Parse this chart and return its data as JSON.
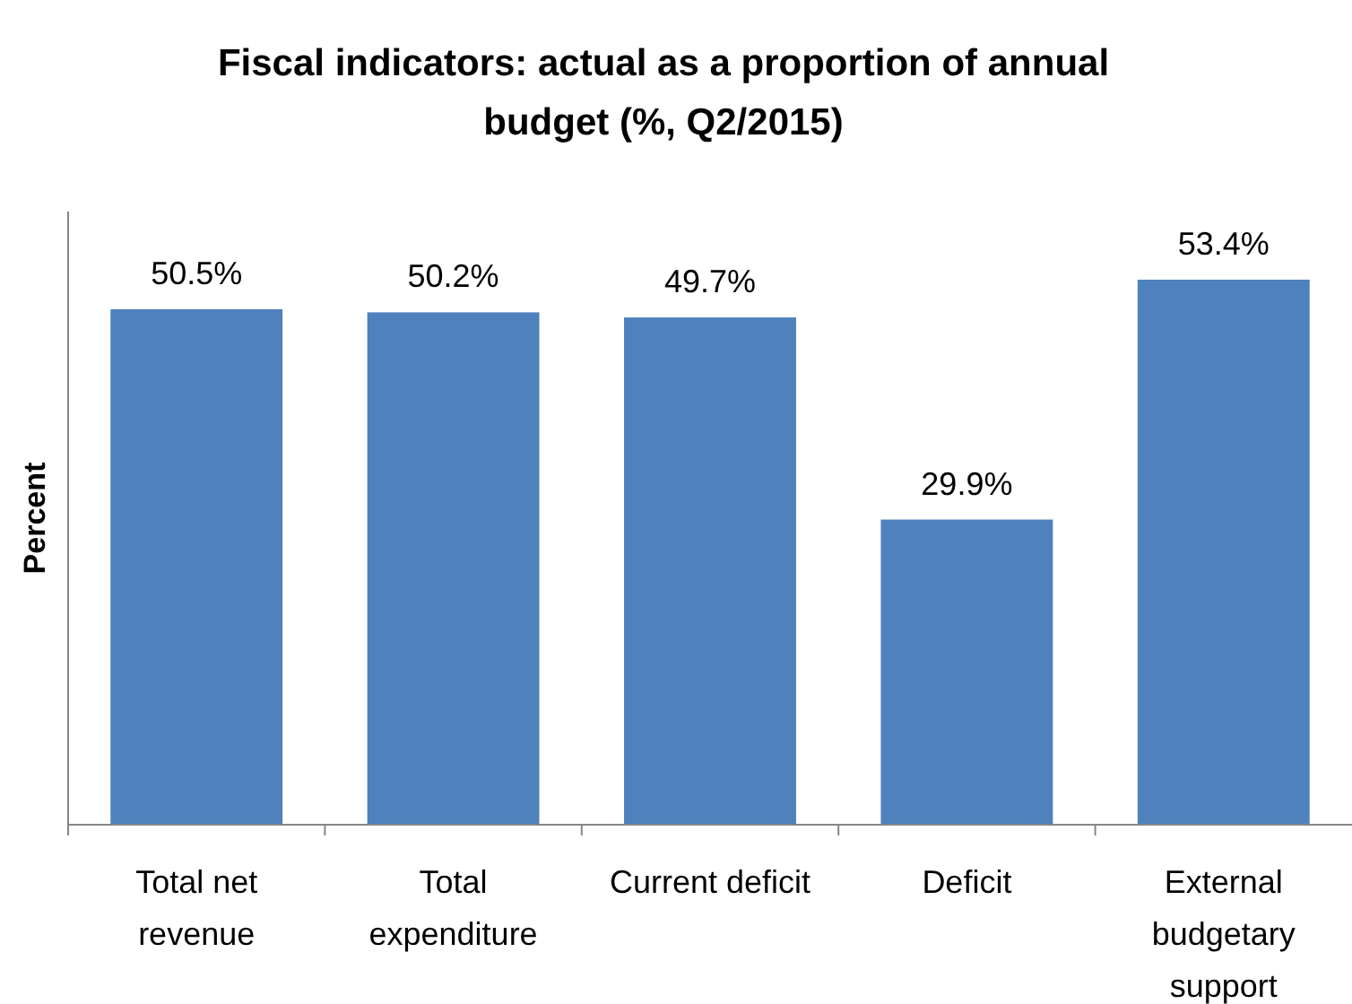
{
  "chart_data": {
    "type": "bar",
    "title": "Fiscal indicators: actual as a proportion of annual budget (%, Q2/2015)",
    "ylabel": "Percent",
    "categories": [
      "Total net revenue",
      "Total expenditure",
      "Current deficit",
      "Deficit",
      "External budgetary support"
    ],
    "values": [
      50.5,
      50.2,
      49.7,
      29.9,
      53.4
    ],
    "value_labels": [
      "50.5%",
      "50.2%",
      "49.7%",
      "29.9%",
      "53.4%"
    ],
    "color": "#4f81bd",
    "relative": false
  }
}
